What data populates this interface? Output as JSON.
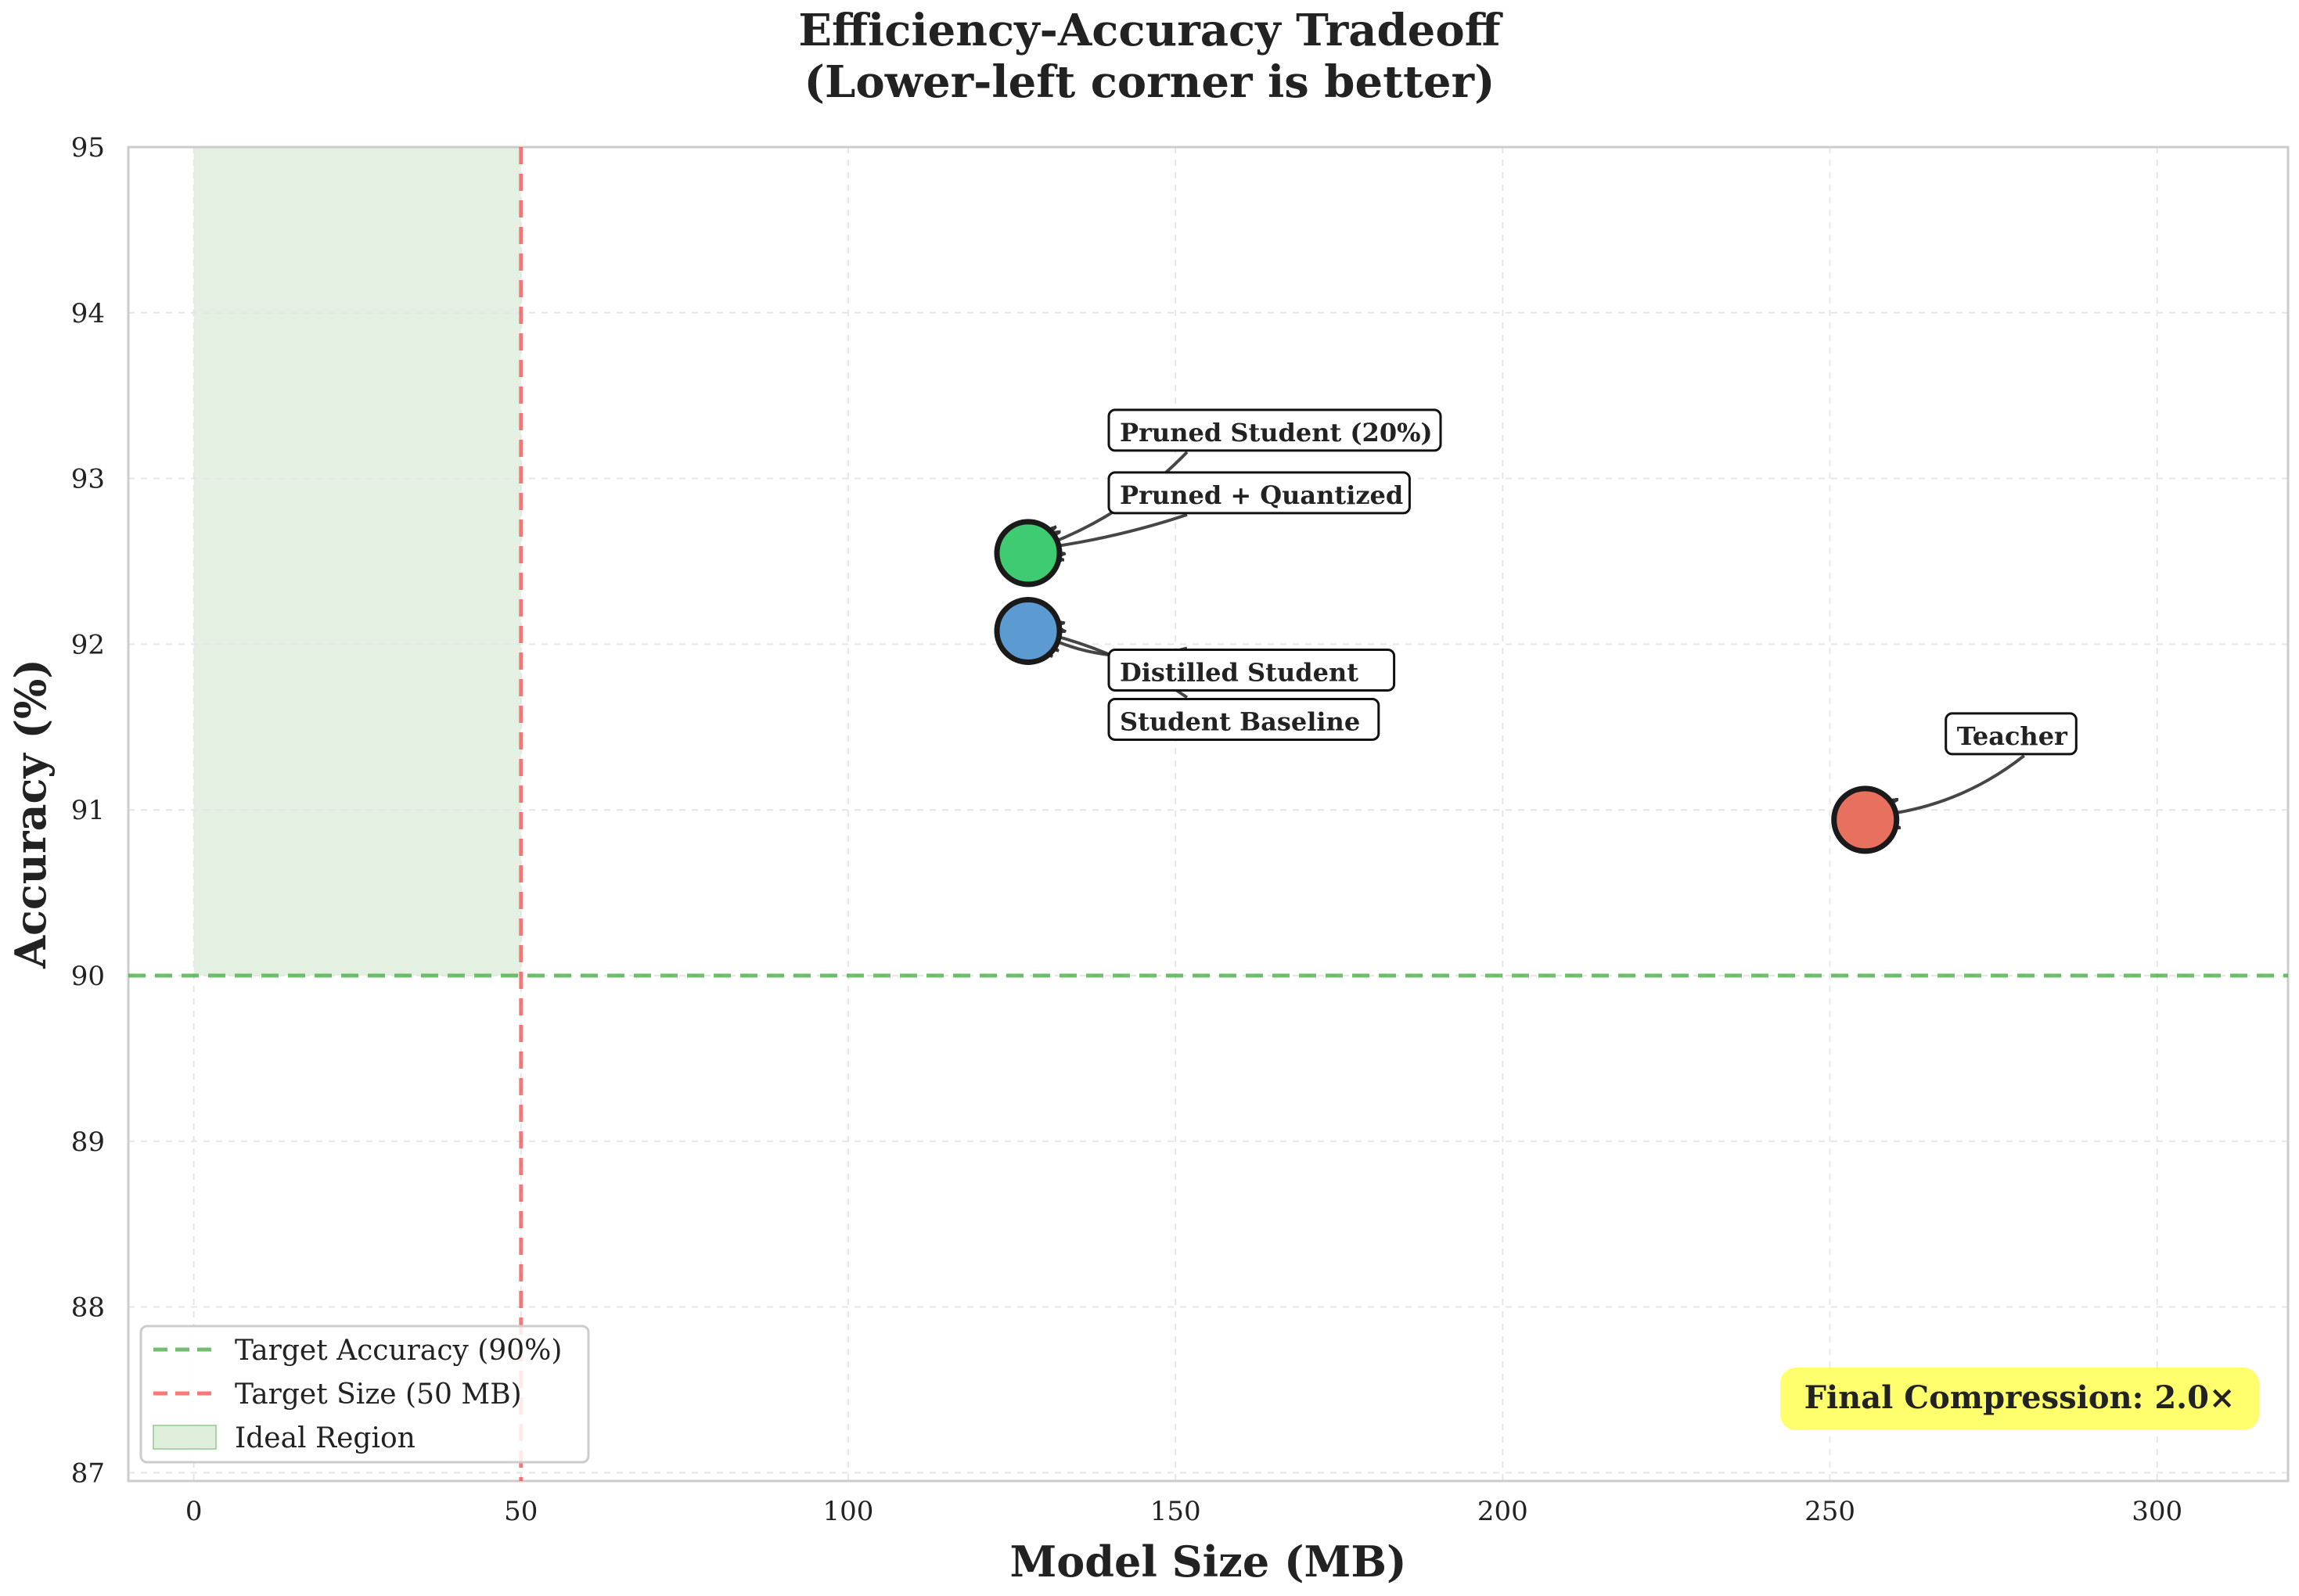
{
  "chart_data": {
    "type": "scatter",
    "title": "Efficiency-Accuracy Tradeoff",
    "subtitle": "(Lower-left corner is better)",
    "xlabel": "Model Size (MB)",
    "ylabel": "Accuracy (%)",
    "xlim": [
      -10,
      320
    ],
    "ylim": [
      86.95,
      95
    ],
    "xticks": [
      "0",
      "50",
      "100",
      "150",
      "200",
      "250",
      "300"
    ],
    "yticks": [
      "87",
      "88",
      "89",
      "90",
      "91",
      "92",
      "93",
      "94",
      "95"
    ],
    "grid": true,
    "legend_position": "lower-left",
    "points": [
      {
        "label": "Teacher",
        "x": 255.4,
        "y": 90.94,
        "color": "#e8705f"
      },
      {
        "label": "Student Baseline",
        "x": 127.5,
        "y": 92.08,
        "color": "#5b9bd2"
      },
      {
        "label": "Distilled Student",
        "x": 127.5,
        "y": 92.08,
        "color": "#5b9bd2"
      },
      {
        "label": "Pruned Student (20%)",
        "x": 127.5,
        "y": 92.55,
        "color": "#3fcb72"
      },
      {
        "label": "Pruned + Quantized",
        "x": 127.5,
        "y": 92.55,
        "color": "#3fcb72"
      }
    ],
    "reference_lines": [
      {
        "label": "Target Accuracy (90%)",
        "orientation": "horizontal",
        "value": 90,
        "color": "#4daf4a"
      },
      {
        "label": "Target Size (50 MB)",
        "orientation": "vertical",
        "value": 50,
        "color": "#ff5555"
      }
    ],
    "region": {
      "label": "Ideal Region",
      "x": [
        0,
        50
      ],
      "y": [
        90,
        95
      ],
      "color": "#c9e4c5"
    },
    "legend": [
      "Target Accuracy (90%)",
      "Target Size (50 MB)",
      "Ideal Region"
    ],
    "annotation_box": {
      "text": "Final Compression: 2.0×",
      "color": "#ffff6e"
    }
  }
}
